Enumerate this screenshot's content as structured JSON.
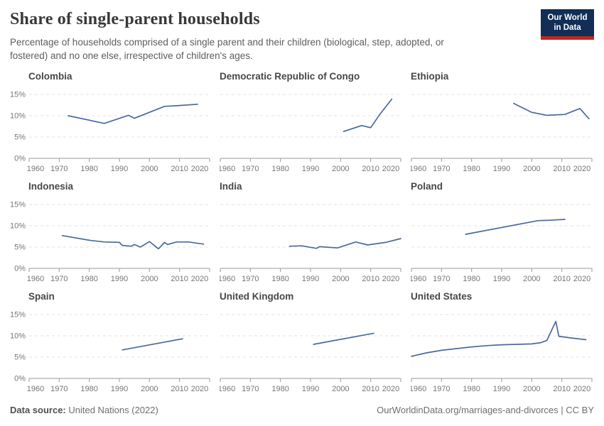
{
  "header": {
    "title": "Share of single-parent households",
    "subtitle": "Percentage of households comprised of a single parent and their children (biological, step, adopted, or fostered) and no one else, irrespective of children's ages.",
    "logo": {
      "line1": "Our World",
      "line2": "in Data",
      "bg_color": "#102e56",
      "accent_color": "#c0271d"
    }
  },
  "footer": {
    "source_label": "Data source:",
    "source_value": " United Nations (2022)",
    "link": "OurWorldinData.org/marriages-and-divorces | CC BY"
  },
  "chart_data": {
    "type": "line",
    "title": "Share of single-parent households",
    "layout": "3x3-small-multiples",
    "x_domain": [
      1960,
      2020
    ],
    "x_ticks": [
      1960,
      1970,
      1980,
      1990,
      2000,
      2010,
      2020
    ],
    "y_ticks": [
      0,
      5,
      10,
      15
    ],
    "y_tick_labels": [
      "0%",
      "5%",
      "10%",
      "15%"
    ],
    "y_max": 16.8,
    "grid": "horizontal-dashed",
    "line_color": "#4c6a9c",
    "grid_color": "#e3e3e3",
    "axis_color": "#9a9a9a",
    "tick_text_color": "#767676",
    "series": [
      {
        "name": "Colombia",
        "points": [
          [
            1973,
            10.0
          ],
          [
            1985,
            8.2
          ],
          [
            1993,
            10.1
          ],
          [
            1995,
            9.4
          ],
          [
            2005,
            12.2
          ],
          [
            2010,
            12.4
          ],
          [
            2016,
            12.7
          ]
        ]
      },
      {
        "name": "Democratic Republic of Congo",
        "points": [
          [
            2001,
            6.3
          ],
          [
            2007,
            7.7
          ],
          [
            2010,
            7.2
          ],
          [
            2013,
            10.3
          ],
          [
            2017,
            13.9
          ]
        ]
      },
      {
        "name": "Ethiopia",
        "points": [
          [
            1994,
            12.9
          ],
          [
            2000,
            10.8
          ],
          [
            2005,
            10.1
          ],
          [
            2011,
            10.3
          ],
          [
            2016,
            11.7
          ],
          [
            2019,
            9.3
          ]
        ]
      },
      {
        "name": "Indonesia",
        "points": [
          [
            1971,
            7.7
          ],
          [
            1980,
            6.6
          ],
          [
            1985,
            6.2
          ],
          [
            1990,
            6.1
          ],
          [
            1991,
            5.4
          ],
          [
            1994,
            5.2
          ],
          [
            1995,
            5.6
          ],
          [
            1997,
            5.0
          ],
          [
            2000,
            6.3
          ],
          [
            2003,
            4.6
          ],
          [
            2005,
            6.1
          ],
          [
            2006,
            5.6
          ],
          [
            2009,
            6.2
          ],
          [
            2013,
            6.2
          ],
          [
            2018,
            5.7
          ]
        ]
      },
      {
        "name": "India",
        "points": [
          [
            1983,
            5.2
          ],
          [
            1987,
            5.3
          ],
          [
            1992,
            4.7
          ],
          [
            1993,
            5.1
          ],
          [
            1999,
            4.8
          ],
          [
            2005,
            6.2
          ],
          [
            2009,
            5.5
          ],
          [
            2015,
            6.1
          ],
          [
            2020,
            7.0
          ]
        ]
      },
      {
        "name": "Poland",
        "points": [
          [
            1978,
            8.0
          ],
          [
            2002,
            11.2
          ],
          [
            2006,
            11.3
          ],
          [
            2011,
            11.5
          ]
        ]
      },
      {
        "name": "Spain",
        "points": [
          [
            1991,
            6.7
          ],
          [
            2011,
            9.3
          ]
        ]
      },
      {
        "name": "United Kingdom",
        "points": [
          [
            1991,
            8.0
          ],
          [
            2011,
            10.6
          ]
        ]
      },
      {
        "name": "United States",
        "points": [
          [
            1960,
            5.2
          ],
          [
            1965,
            6.0
          ],
          [
            1970,
            6.6
          ],
          [
            1975,
            7.0
          ],
          [
            1980,
            7.4
          ],
          [
            1985,
            7.7
          ],
          [
            1990,
            7.9
          ],
          [
            1995,
            8.0
          ],
          [
            2000,
            8.1
          ],
          [
            2003,
            8.4
          ],
          [
            2005,
            8.9
          ],
          [
            2008,
            13.4
          ],
          [
            2009,
            9.9
          ],
          [
            2013,
            9.5
          ],
          [
            2018,
            9.1
          ]
        ]
      }
    ]
  }
}
